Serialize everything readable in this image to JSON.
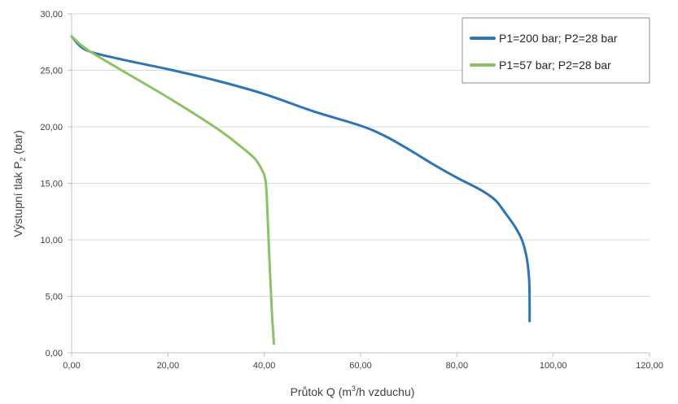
{
  "chart_data": {
    "type": "line",
    "xlabel_main": "Průtok Q (m",
    "xlabel_sup": "3",
    "xlabel_tail": "/h vzduchu)",
    "ylabel_main": "Výstupní tlak P",
    "ylabel_sub": "2",
    "ylabel_tail": " (bar)",
    "xlim": [
      0,
      120
    ],
    "ylim": [
      0,
      30
    ],
    "x_ticks": [
      "0,00",
      "20,00",
      "40,00",
      "60,00",
      "80,00",
      "100,00",
      "120,00"
    ],
    "y_ticks": [
      "0,00",
      "5,00",
      "10,00",
      "15,00",
      "20,00",
      "25,00",
      "30,00"
    ],
    "grid": "horizontal",
    "legend_position": "top-right",
    "series": [
      {
        "name": "P1=200 bar; P2=28 bar",
        "color": "#2e75b6",
        "x": [
          0,
          3,
          10,
          20,
          30,
          40,
          50,
          60,
          65,
          70,
          75,
          80,
          85,
          88,
          90,
          92,
          93.5,
          94.5,
          95,
          95.1,
          95.1
        ],
        "y": [
          28,
          26.8,
          26,
          25.1,
          24.1,
          22.9,
          21.4,
          20.1,
          19.2,
          18.0,
          16.7,
          15.5,
          14.4,
          13.5,
          12.4,
          11.2,
          10.0,
          8.4,
          6.5,
          4.5,
          2.8
        ]
      },
      {
        "name": "P1=57 bar; P2=28 bar",
        "color": "#8cc266",
        "x": [
          0,
          3,
          10,
          20,
          30,
          35,
          38,
          39.5,
          40.2,
          40.5,
          40.8,
          41.2,
          41.6,
          42.0
        ],
        "y": [
          28,
          26.9,
          25.1,
          22.6,
          19.9,
          18.3,
          17.2,
          16.2,
          15.4,
          14.0,
          11.0,
          7.0,
          3.5,
          0.8
        ]
      }
    ]
  }
}
